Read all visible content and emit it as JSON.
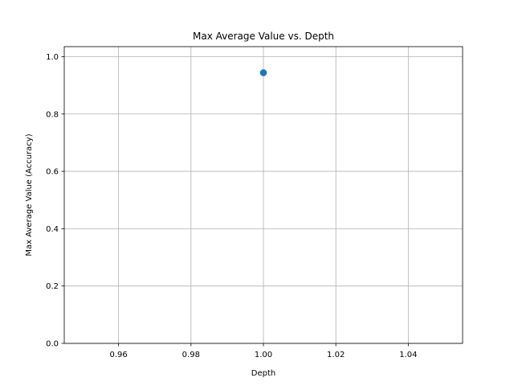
{
  "chart_data": {
    "type": "scatter",
    "title": "Max Average Value vs. Depth",
    "xlabel": "Depth",
    "ylabel": "Max Average Value (Accuracy)",
    "xlim": [
      0.945,
      1.055
    ],
    "ylim": [
      0.0,
      1.035
    ],
    "xticks": [
      0.96,
      0.98,
      1.0,
      1.02,
      1.04
    ],
    "xtick_labels": [
      "0.96",
      "0.98",
      "1.00",
      "1.02",
      "1.04"
    ],
    "yticks": [
      0.0,
      0.2,
      0.4,
      0.6,
      0.8,
      1.0
    ],
    "ytick_labels": [
      "0.0",
      "0.2",
      "0.4",
      "0.6",
      "0.8",
      "1.0"
    ],
    "grid": true,
    "series": [
      {
        "color": "#1f77b4",
        "marker": "circle",
        "points": [
          {
            "x": 1.0,
            "y": 0.944
          }
        ]
      }
    ]
  }
}
